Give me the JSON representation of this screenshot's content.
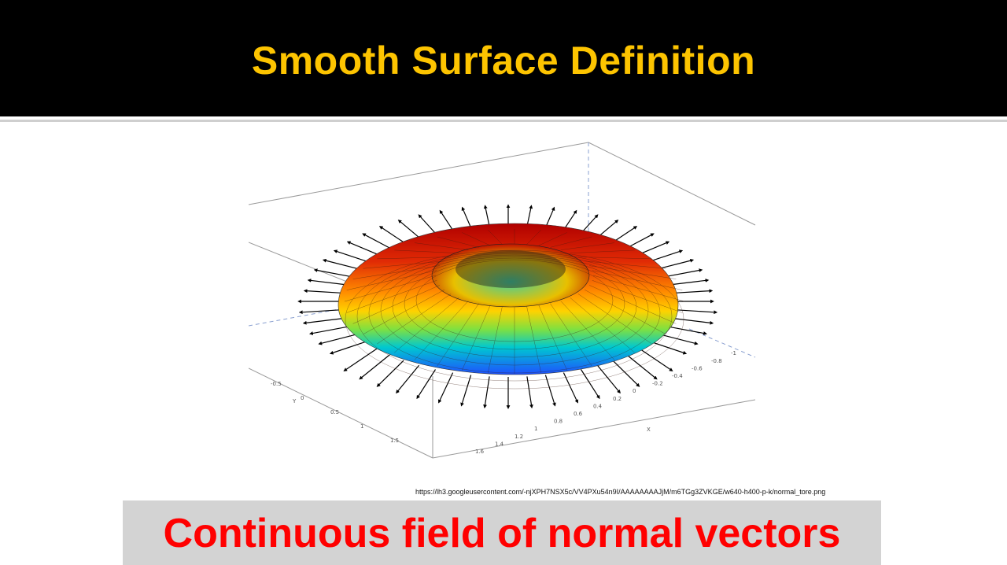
{
  "slide": {
    "title": "Smooth Surface Definition",
    "caption": "Continuous field of normal vectors",
    "source_url": "https://lh3.googleusercontent.com/-njXPH7NSX5c/VV4PXu54n9I/AAAAAAAAJjM/m6TGg3ZVKGE/w640-h400-p-k/normal_tore.png"
  },
  "figure": {
    "icon": "torus-normal-vectors-plot",
    "y_axis_label": "Y",
    "y_ticks": [
      "-0.5",
      "0",
      "0.5",
      "1",
      "1.5"
    ],
    "x_axis_label": "X",
    "x_ticks": [
      "1.6",
      "1.4",
      "1.2",
      "1",
      "0.8",
      "0.6",
      "0.4",
      "0.2",
      "0",
      "-0.2",
      "-0.4",
      "-0.6",
      "-0.8",
      "-1"
    ],
    "x_axis_end_label": "X",
    "colors": {
      "top": "#d81e05",
      "middle": "#ffd200",
      "bottom": "#1e64ff"
    }
  }
}
